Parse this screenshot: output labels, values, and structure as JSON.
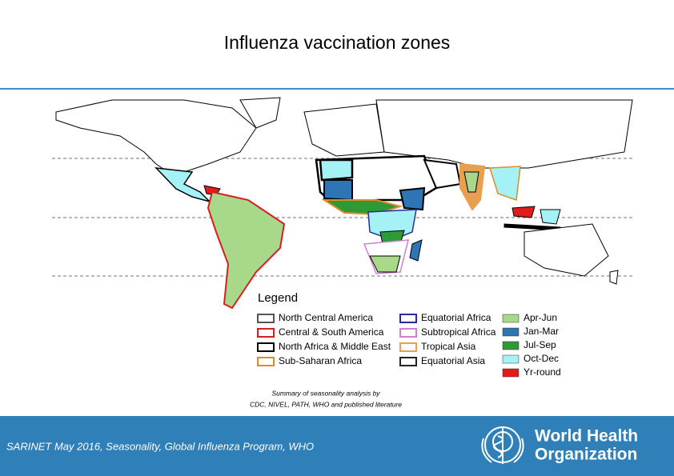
{
  "title": "Influenza vaccination zones",
  "legend": {
    "title": "Legend",
    "zones": [
      {
        "label": "North Central America",
        "color": "#555555"
      },
      {
        "label": "Central & South America",
        "color": "#d62020"
      },
      {
        "label": "North Africa & Middle East",
        "color": "#000000"
      },
      {
        "label": "Sub-Saharan Africa",
        "color": "#e08a2a"
      },
      {
        "label": "Equatorial Africa",
        "color": "#2a2aa0"
      },
      {
        "label": "Subtropical Africa",
        "color": "#d080d0"
      },
      {
        "label": "Tropical Asia",
        "color": "#e8a050"
      },
      {
        "label": "Equatorial Asia",
        "color": "#222222"
      }
    ],
    "seasons": [
      {
        "label": "Apr-Jun",
        "color": "#a8d88a"
      },
      {
        "label": "Jan-Mar",
        "color": "#2e75b6"
      },
      {
        "label": "Jul-Sep",
        "color": "#2e9a36"
      },
      {
        "label": "Oct-Dec",
        "color": "#a4f2f6"
      },
      {
        "label": "Yr-round",
        "color": "#e01c1c"
      }
    ]
  },
  "caption": [
    "Summary of seasonality analysis by",
    "CDC, NIVEL, PATH, WHO and published literature"
  ],
  "footer": "SARINET May 2016, Seasonality, Global Influenza Program, WHO",
  "logo": [
    "World Health",
    "Organization"
  ]
}
